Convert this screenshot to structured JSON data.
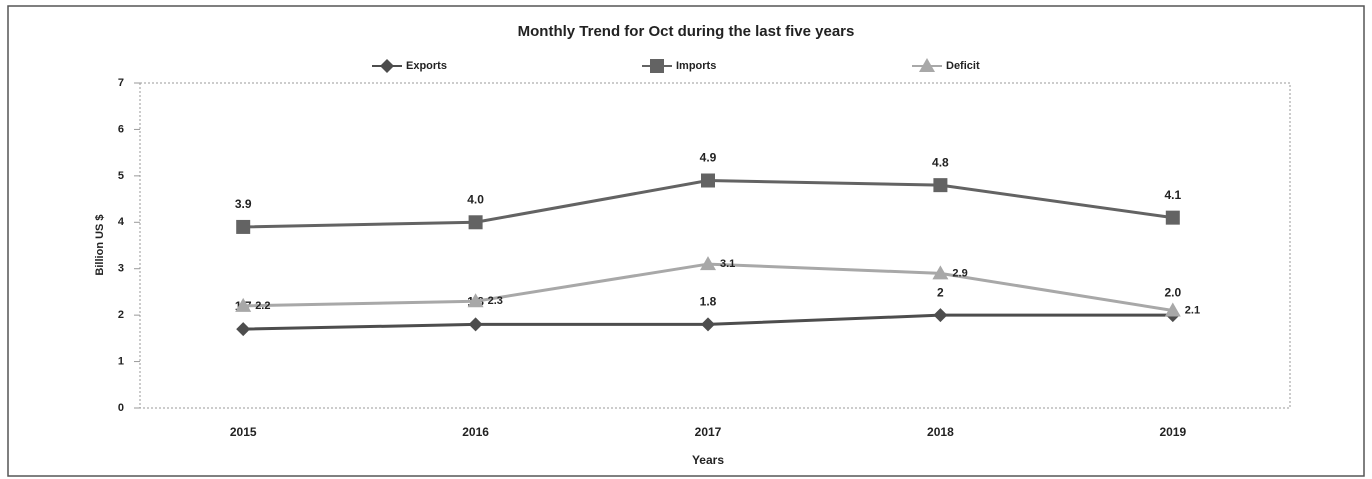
{
  "chart_data": {
    "type": "line",
    "title": "Monthly Trend for Oct during the last five years",
    "x_label": "Years",
    "y_label": "Billion US $",
    "categories": [
      "2015",
      "2016",
      "2017",
      "2018",
      "2019"
    ],
    "series": [
      {
        "name": "Exports",
        "color": "#4d4d4d",
        "marker": "diamond",
        "values": [
          1.7,
          1.8,
          1.8,
          2,
          2.0
        ],
        "value_labels": [
          "1.7",
          "1.8",
          "1.8",
          "2",
          "2.0"
        ]
      },
      {
        "name": "Imports",
        "color": "#636363",
        "marker": "square",
        "values": [
          3.9,
          4.0,
          4.9,
          4.8,
          4.1
        ],
        "value_labels": [
          "3.9",
          "4.0",
          "4.9",
          "4.8",
          "4.1"
        ]
      },
      {
        "name": "Deficit",
        "color": "#a8a8a8",
        "marker": "triangle",
        "values": [
          2.2,
          2.3,
          3.1,
          2.9,
          2.1
        ],
        "value_labels": [
          "2.2",
          "2.3",
          "3.1",
          "2.9",
          "2.1"
        ]
      }
    ],
    "ylim": [
      0,
      7
    ],
    "yticks": [
      0,
      1,
      2,
      3,
      4,
      5,
      6,
      7
    ],
    "legend": "top"
  }
}
